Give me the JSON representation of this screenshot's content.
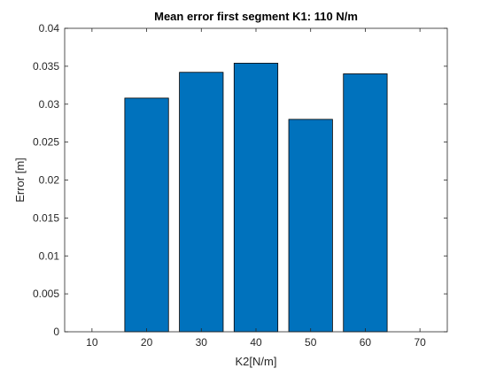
{
  "chart_data": {
    "type": "bar",
    "title": "Mean error first segment K1: 110 N/m",
    "xlabel": "K2[N/m]",
    "ylabel": "Error [m]",
    "x": [
      20,
      30,
      40,
      50,
      60
    ],
    "values": [
      0.0308,
      0.0342,
      0.0354,
      0.028,
      0.034
    ],
    "xlim": [
      5,
      75
    ],
    "ylim": [
      0,
      0.04
    ],
    "xticks": [
      "10",
      "20",
      "30",
      "40",
      "50",
      "60",
      "70"
    ],
    "yticks": [
      "0",
      "0.005",
      "0.01",
      "0.015",
      "0.02",
      "0.025",
      "0.03",
      "0.035",
      "0.04"
    ],
    "bar_color": "#0072BD",
    "grid": false,
    "legend": "none"
  }
}
